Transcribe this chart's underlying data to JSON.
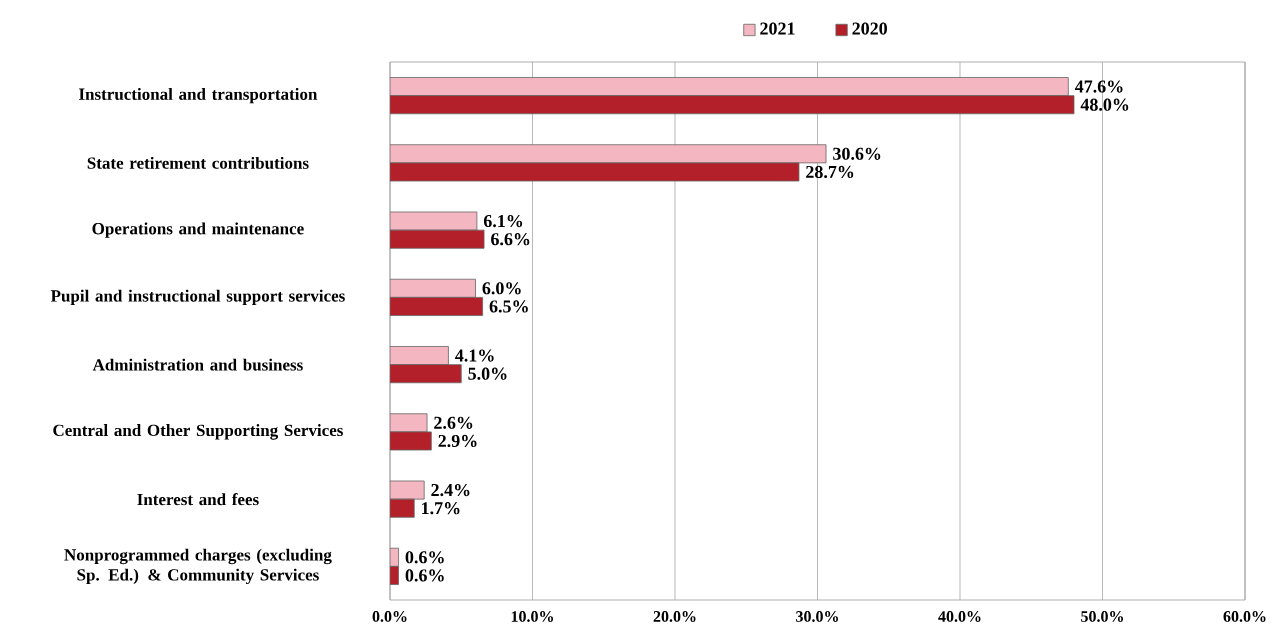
{
  "chart_data": {
    "type": "bar",
    "orientation": "horizontal",
    "categories": [
      "Instructional and transportation",
      "State retirement contributions",
      "Operations and maintenance",
      "Pupil and instructional support services",
      "Administration and business",
      "Central and Other Supporting Services",
      "Interest and fees",
      "Nonprogrammed charges (excluding Sp. Ed.) & Community Services"
    ],
    "series": [
      {
        "name": "2021",
        "color": "#f4b6c0",
        "values": [
          47.6,
          30.6,
          6.1,
          6.0,
          4.1,
          2.6,
          2.4,
          0.6
        ],
        "value_labels": [
          "47.6%",
          "30.6%",
          "6.1%",
          "6.0%",
          "4.1%",
          "2.6%",
          "2.4%",
          "0.6%"
        ]
      },
      {
        "name": "2020",
        "color": "#b3202a",
        "values": [
          48.0,
          28.7,
          6.6,
          6.5,
          5.0,
          2.9,
          1.7,
          0.6
        ],
        "value_labels": [
          "48.0%",
          "28.7%",
          "6.6%",
          "6.5%",
          "5.0%",
          "2.9%",
          "1.7%",
          "0.6%"
        ]
      }
    ],
    "xlim": [
      0,
      60
    ],
    "xticks": [
      {
        "value": 0,
        "label": "0.0%"
      },
      {
        "value": 10,
        "label": "10.0%"
      },
      {
        "value": 20,
        "label": "20.0%"
      },
      {
        "value": 30,
        "label": "30.0%"
      },
      {
        "value": 40,
        "label": "40.0%"
      },
      {
        "value": 50,
        "label": "50.0%"
      },
      {
        "value": 60,
        "label": "60.0%"
      }
    ],
    "grid": "x",
    "legend": "top"
  }
}
